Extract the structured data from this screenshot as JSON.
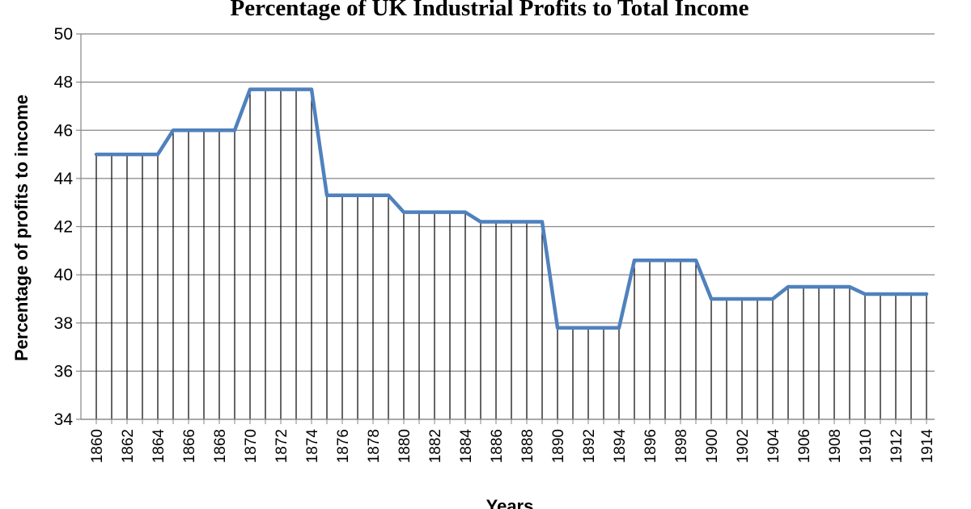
{
  "chart_data": {
    "type": "line",
    "title": "Percentage of UK Industrial Profits to Total Income",
    "xlabel": "Years",
    "ylabel": "Percentage of profits to income",
    "ylim": [
      34,
      50
    ],
    "yticks": [
      34,
      36,
      38,
      40,
      42,
      44,
      46,
      48,
      50
    ],
    "x": [
      1860,
      1861,
      1862,
      1863,
      1864,
      1865,
      1866,
      1867,
      1868,
      1869,
      1870,
      1871,
      1872,
      1873,
      1874,
      1875,
      1876,
      1877,
      1878,
      1879,
      1880,
      1881,
      1882,
      1883,
      1884,
      1885,
      1886,
      1887,
      1888,
      1889,
      1890,
      1891,
      1892,
      1893,
      1894,
      1895,
      1896,
      1897,
      1898,
      1899,
      1900,
      1901,
      1902,
      1903,
      1904,
      1905,
      1906,
      1907,
      1908,
      1909,
      1910,
      1911,
      1912,
      1913,
      1914
    ],
    "xtick_labels": [
      "1860",
      "1862",
      "1864",
      "1866",
      "1868",
      "1870",
      "1872",
      "1874",
      "1876",
      "1878",
      "1880",
      "1882",
      "1884",
      "1886",
      "1888",
      "1890",
      "1892",
      "1894",
      "1896",
      "1898",
      "1900",
      "1902",
      "1904",
      "1906",
      "1908",
      "1910",
      "1912",
      "1914"
    ],
    "grid": true,
    "drop_lines": true,
    "legend": "none",
    "series": [
      {
        "color": "#4f81bd",
        "values": [
          45,
          45,
          45,
          45,
          45,
          46,
          46,
          46,
          46,
          46,
          47.7,
          47.7,
          47.7,
          47.7,
          47.7,
          43.3,
          43.3,
          43.3,
          43.3,
          43.3,
          42.6,
          42.6,
          42.6,
          42.6,
          42.6,
          42.2,
          42.2,
          42.2,
          42.2,
          42.2,
          37.8,
          37.8,
          37.8,
          37.8,
          37.8,
          40.6,
          40.6,
          40.6,
          40.6,
          40.6,
          39,
          39,
          39,
          39,
          39,
          39.5,
          39.5,
          39.5,
          39.5,
          39.5,
          39.2,
          39.2,
          39.2,
          39.2,
          39.2
        ]
      }
    ]
  }
}
